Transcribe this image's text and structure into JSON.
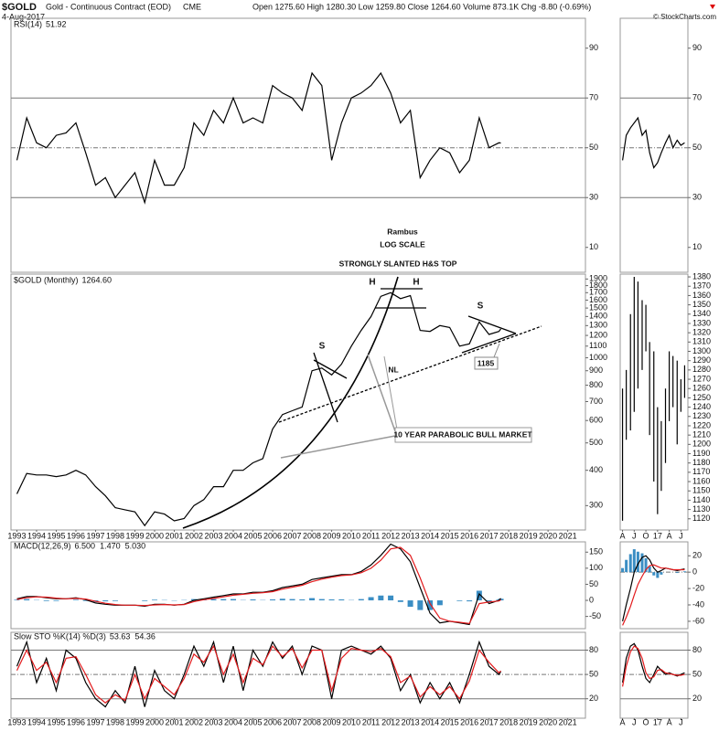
{
  "header": {
    "symbol": "$GOLD",
    "name": "Gold - Continuous Contract (EOD)",
    "exchange": "CME",
    "date": "4-Aug-2017",
    "quote": "Open 1275.60  High 1280.30  Low 1259.80  Close 1264.60  Volume 873.1K  Chg -8.80 (-0.69%)",
    "credit": "© StockCharts.com"
  },
  "chart_data": [
    {
      "type": "line",
      "title": "RSI(14)",
      "readouts": [
        "51.92"
      ],
      "color": "#000000",
      "x": [
        1993,
        1993.5,
        1994,
        1994.5,
        1995,
        1995.5,
        1996,
        1996.5,
        1997,
        1997.5,
        1998,
        1998.5,
        1999,
        1999.5,
        2000,
        2000.5,
        2001,
        2001.5,
        2002,
        2002.5,
        2003,
        2003.5,
        2004,
        2004.5,
        2005,
        2005.5,
        2006,
        2006.5,
        2007,
        2007.5,
        2008,
        2008.5,
        2009,
        2009.5,
        2010,
        2010.5,
        2011,
        2011.5,
        2012,
        2012.5,
        2013,
        2013.5,
        2014,
        2014.5,
        2015,
        2015.5,
        2016,
        2016.5,
        2017,
        2017.5,
        2017.6
      ],
      "values": [
        45,
        62,
        52,
        50,
        55,
        56,
        60,
        48,
        35,
        38,
        30,
        35,
        40,
        28,
        45,
        35,
        35,
        42,
        60,
        55,
        65,
        60,
        70,
        60,
        62,
        60,
        75,
        72,
        70,
        65,
        80,
        75,
        45,
        60,
        70,
        72,
        75,
        80,
        72,
        60,
        65,
        38,
        45,
        50,
        48,
        40,
        45,
        62,
        50,
        52,
        51.92
      ],
      "xlim": [
        1992.7,
        2021.9
      ],
      "ylim": [
        0,
        102
      ],
      "yticks": [
        10,
        30,
        50,
        70,
        90
      ]
    },
    {
      "type": "line",
      "title": "$GOLD (Monthly)",
      "readouts": [
        "1264.60"
      ],
      "color": "#000000",
      "log_scale": true,
      "x": [
        1993,
        1993.5,
        1994,
        1994.5,
        1995,
        1995.5,
        1996,
        1996.5,
        1997,
        1997.5,
        1998,
        1998.5,
        1999,
        1999.5,
        2000,
        2000.5,
        2001,
        2001.5,
        2002,
        2002.5,
        2003,
        2003.5,
        2004,
        2004.5,
        2005,
        2005.5,
        2006,
        2006.5,
        2007,
        2007.5,
        2008,
        2008.5,
        2009,
        2009.5,
        2010,
        2010.5,
        2011,
        2011.5,
        2012,
        2012.5,
        2013,
        2013.5,
        2014,
        2014.5,
        2015,
        2015.5,
        2016,
        2016.5,
        2017,
        2017.5,
        2017.6
      ],
      "values": [
        330,
        390,
        385,
        385,
        380,
        385,
        400,
        385,
        350,
        325,
        295,
        290,
        285,
        255,
        285,
        280,
        265,
        270,
        300,
        315,
        350,
        350,
        400,
        400,
        425,
        440,
        560,
        630,
        650,
        670,
        900,
        920,
        870,
        950,
        1100,
        1250,
        1400,
        1650,
        1700,
        1620,
        1660,
        1250,
        1240,
        1300,
        1280,
        1100,
        1120,
        1340,
        1210,
        1240,
        1264.6
      ],
      "xlim": [
        1992.7,
        2021.9
      ],
      "ylim": [
        246,
        1977
      ],
      "yticks": [
        300,
        400,
        500,
        600,
        700,
        800,
        900,
        1000,
        1100,
        1200,
        1300,
        1400,
        1500,
        1600,
        1700,
        1800,
        1900
      ],
      "xticks": [
        1993,
        1994,
        1995,
        1996,
        1997,
        1998,
        1999,
        2000,
        2001,
        2002,
        2003,
        2004,
        2005,
        2006,
        2007,
        2008,
        2009,
        2010,
        2011,
        2012,
        2013,
        2014,
        2015,
        2016,
        2017,
        2018,
        2019,
        2020,
        2021
      ],
      "annotations": [
        "Rambus",
        "LOG SCALE",
        "STRONGLY SLANTED H&S TOP",
        "H",
        "H",
        "S",
        "S",
        "NL",
        1185,
        "10 YEAR PARABOLIC BULL MARKET"
      ]
    },
    {
      "type": "macd",
      "title": "MACD(12,26,9)",
      "readouts": [
        "6.500",
        "1.470",
        "5.030"
      ],
      "x": [
        1993,
        1993.5,
        1994,
        1994.5,
        1995,
        1995.5,
        1996,
        1996.5,
        1997,
        1997.5,
        1998,
        1998.5,
        1999,
        1999.5,
        2000,
        2000.5,
        2001,
        2001.5,
        2002,
        2002.5,
        2003,
        2003.5,
        2004,
        2004.5,
        2005,
        2005.5,
        2006,
        2006.5,
        2007,
        2007.5,
        2008,
        2008.5,
        2009,
        2009.5,
        2010,
        2010.5,
        2011,
        2011.5,
        2012,
        2012.5,
        2013,
        2013.5,
        2014,
        2014.5,
        2015,
        2015.5,
        2016,
        2016.5,
        2017,
        2017.5,
        2017.6
      ],
      "series": [
        {
          "color": "#000000",
          "values": [
            5,
            12,
            12,
            8,
            5,
            5,
            8,
            2,
            -8,
            -12,
            -15,
            -15,
            -15,
            -18,
            -12,
            -12,
            -15,
            -12,
            0,
            5,
            10,
            15,
            20,
            20,
            25,
            25,
            30,
            40,
            45,
            50,
            65,
            70,
            75,
            80,
            80,
            90,
            110,
            140,
            175,
            160,
            120,
            40,
            -40,
            -70,
            -65,
            -70,
            -75,
            20,
            -10,
            0,
            6.5
          ]
        },
        {
          "color": "#e31a1c",
          "values": [
            3,
            8,
            11,
            10,
            7,
            5,
            6,
            4,
            -3,
            -9,
            -13,
            -15,
            -15,
            -16,
            -14,
            -13,
            -14,
            -13,
            -4,
            2,
            6,
            11,
            16,
            19,
            22,
            24,
            27,
            35,
            41,
            47,
            58,
            66,
            72,
            77,
            79,
            86,
            100,
            125,
            160,
            165,
            140,
            70,
            -10,
            -55,
            -65,
            -68,
            -72,
            -10,
            -5,
            -2,
            1.47
          ]
        },
        {
          "color": "#3b8ec4",
          "style": "histogram",
          "values": [
            2,
            4,
            1,
            -2,
            -2,
            0,
            2,
            -2,
            -5,
            -3,
            -2,
            0,
            0,
            -2,
            2,
            1,
            -1,
            1,
            4,
            3,
            4,
            4,
            4,
            1,
            3,
            1,
            3,
            5,
            4,
            3,
            7,
            4,
            3,
            3,
            1,
            4,
            10,
            15,
            15,
            -5,
            -20,
            -30,
            -30,
            -15,
            0,
            -2,
            -3,
            30,
            -5,
            2,
            5.03
          ]
        }
      ],
      "xlim": [
        1992.7,
        2021.9
      ],
      "ylim": [
        -88,
        182
      ],
      "yticks": [
        -50,
        0,
        50,
        100,
        150
      ]
    },
    {
      "type": "line",
      "title": "Slow STO %K(14) %D(3)",
      "readouts": [
        "53.63",
        "54.36"
      ],
      "x": [
        1993,
        1993.5,
        1994,
        1994.5,
        1995,
        1995.5,
        1996,
        1996.5,
        1997,
        1997.5,
        1998,
        1998.5,
        1999,
        1999.5,
        2000,
        2000.5,
        2001,
        2001.5,
        2002,
        2002.5,
        2003,
        2003.5,
        2004,
        2004.5,
        2005,
        2005.5,
        2006,
        2006.5,
        2007,
        2007.5,
        2008,
        2008.5,
        2009,
        2009.5,
        2010,
        2010.5,
        2011,
        2011.5,
        2012,
        2012.5,
        2013,
        2013.5,
        2014,
        2014.5,
        2015,
        2015.5,
        2016,
        2016.5,
        2017,
        2017.5,
        2017.6
      ],
      "series": [
        {
          "color": "#000000",
          "values": [
            60,
            90,
            40,
            70,
            30,
            80,
            70,
            40,
            20,
            10,
            30,
            15,
            60,
            10,
            55,
            30,
            20,
            50,
            85,
            60,
            90,
            40,
            85,
            30,
            80,
            60,
            90,
            70,
            85,
            50,
            85,
            80,
            20,
            80,
            85,
            80,
            75,
            85,
            70,
            30,
            50,
            15,
            40,
            20,
            40,
            15,
            50,
            90,
            60,
            50,
            53.63
          ]
        },
        {
          "color": "#e31a1c",
          "values": [
            55,
            80,
            55,
            65,
            40,
            70,
            72,
            50,
            25,
            15,
            25,
            18,
            50,
            20,
            45,
            35,
            25,
            45,
            75,
            65,
            85,
            50,
            75,
            40,
            70,
            62,
            85,
            72,
            82,
            58,
            80,
            80,
            30,
            70,
            82,
            80,
            78,
            82,
            72,
            40,
            48,
            22,
            35,
            25,
            35,
            20,
            42,
            80,
            65,
            52,
            54.36
          ]
        }
      ],
      "xlim": [
        1992.7,
        2021.9
      ],
      "ylim": [
        -4,
        102
      ],
      "yticks": [
        20,
        50,
        80
      ],
      "xticks": [
        1993,
        1994,
        1995,
        1996,
        1997,
        1998,
        1999,
        2000,
        2001,
        2002,
        2003,
        2004,
        2005,
        2006,
        2007,
        2008,
        2009,
        2010,
        2011,
        2012,
        2013,
        2014,
        2015,
        2016,
        2017,
        2018,
        2019,
        2020,
        2021
      ]
    },
    {
      "type": "line",
      "color": "#000000",
      "x": [
        2016.25,
        2016.33,
        2016.42,
        2016.5,
        2016.58,
        2016.67,
        2016.75,
        2016.83,
        2016.92,
        2017.0,
        2017.08,
        2017.17,
        2017.25,
        2017.33,
        2017.42,
        2017.5,
        2017.58
      ],
      "values": [
        45,
        55,
        58,
        60,
        62,
        55,
        57,
        48,
        42,
        44,
        48,
        52,
        55,
        50,
        53,
        51,
        52
      ],
      "xlim": [
        2016.2,
        2017.65
      ],
      "ylim": [
        0,
        102
      ],
      "yticks": [
        10,
        30,
        50,
        70,
        90
      ]
    },
    {
      "type": "ohlc",
      "color": "#000000",
      "x": [
        2016.25,
        2016.33,
        2016.42,
        2016.5,
        2016.58,
        2016.67,
        2016.75,
        2016.83,
        2016.92,
        2017.0,
        2017.08,
        2017.17,
        2017.25,
        2017.33,
        2017.42,
        2017.5,
        2017.58
      ],
      "high": [
        1260,
        1280,
        1340,
        1380,
        1375,
        1355,
        1350,
        1310,
        1300,
        1240,
        1225,
        1260,
        1300,
        1295,
        1290,
        1270,
        1285
      ],
      "low": [
        1118,
        1205,
        1215,
        1235,
        1260,
        1280,
        1300,
        1210,
        1160,
        1125,
        1150,
        1180,
        1225,
        1240,
        1200,
        1235,
        1250
      ],
      "xlim": [
        2016.2,
        2017.65
      ],
      "ylim": [
        1108,
        1383
      ],
      "yticks": [
        1120,
        1130,
        1140,
        1150,
        1160,
        1170,
        1180,
        1190,
        1200,
        1210,
        1220,
        1230,
        1240,
        1250,
        1260,
        1270,
        1280,
        1290,
        1300,
        1310,
        1320,
        1330,
        1340,
        1350,
        1360,
        1370,
        1380
      ],
      "xticks": [
        {
          "value": 2016.25,
          "label": "A"
        },
        {
          "value": 2016.5,
          "label": "J"
        },
        {
          "value": 2016.75,
          "label": "O"
        },
        {
          "value": 2017.0,
          "label": "17"
        },
        {
          "value": 2017.25,
          "label": "A"
        },
        {
          "value": 2017.5,
          "label": "J"
        }
      ]
    },
    {
      "type": "macd",
      "x": [
        2016.25,
        2016.33,
        2016.42,
        2016.5,
        2016.58,
        2016.67,
        2016.75,
        2016.83,
        2016.92,
        2017.0,
        2017.08,
        2017.17,
        2017.25,
        2017.33,
        2017.42,
        2017.5,
        2017.58
      ],
      "series": [
        {
          "color": "#000000",
          "values": [
            -60,
            -40,
            -20,
            0,
            10,
            18,
            20,
            15,
            5,
            0,
            2,
            5,
            4,
            3,
            2,
            3,
            4
          ]
        },
        {
          "color": "#e31a1c",
          "values": [
            -65,
            -55,
            -42,
            -28,
            -15,
            -5,
            3,
            8,
            9,
            7,
            5,
            5,
            4,
            3,
            3,
            3,
            3
          ]
        },
        {
          "color": "#3b8ec4",
          "style": "histogram",
          "values": [
            5,
            15,
            22,
            28,
            25,
            23,
            17,
            7,
            -4,
            -7,
            -3,
            0,
            0,
            0,
            -1,
            0,
            1
          ]
        }
      ],
      "xlim": [
        2016.2,
        2017.65
      ],
      "ylim": [
        -69,
        37
      ],
      "yticks": [
        -60,
        -40,
        -20,
        0,
        20
      ]
    },
    {
      "type": "line",
      "x": [
        2016.25,
        2016.33,
        2016.42,
        2016.5,
        2016.58,
        2016.67,
        2016.75,
        2016.83,
        2016.92,
        2017.0,
        2017.08,
        2017.17,
        2017.25,
        2017.33,
        2017.42,
        2017.5,
        2017.58
      ],
      "series": [
        {
          "color": "#000000",
          "values": [
            40,
            70,
            85,
            88,
            80,
            60,
            45,
            40,
            50,
            60,
            55,
            50,
            52,
            50,
            48,
            50,
            52
          ]
        },
        {
          "color": "#e31a1c",
          "values": [
            35,
            60,
            78,
            85,
            82,
            70,
            52,
            45,
            47,
            55,
            56,
            52,
            51,
            50,
            49,
            49,
            50
          ]
        }
      ],
      "xlim": [
        2016.2,
        2017.65
      ],
      "ylim": [
        -4,
        102
      ],
      "yticks": [
        20,
        50,
        80
      ],
      "xticks": [
        {
          "value": 2016.25,
          "label": "A"
        },
        {
          "value": 2016.5,
          "label": "J"
        },
        {
          "value": 2016.75,
          "label": "O"
        },
        {
          "value": 2017.0,
          "label": "17"
        },
        {
          "value": 2017.25,
          "label": "A"
        },
        {
          "value": 2017.5,
          "label": "J"
        }
      ]
    }
  ]
}
